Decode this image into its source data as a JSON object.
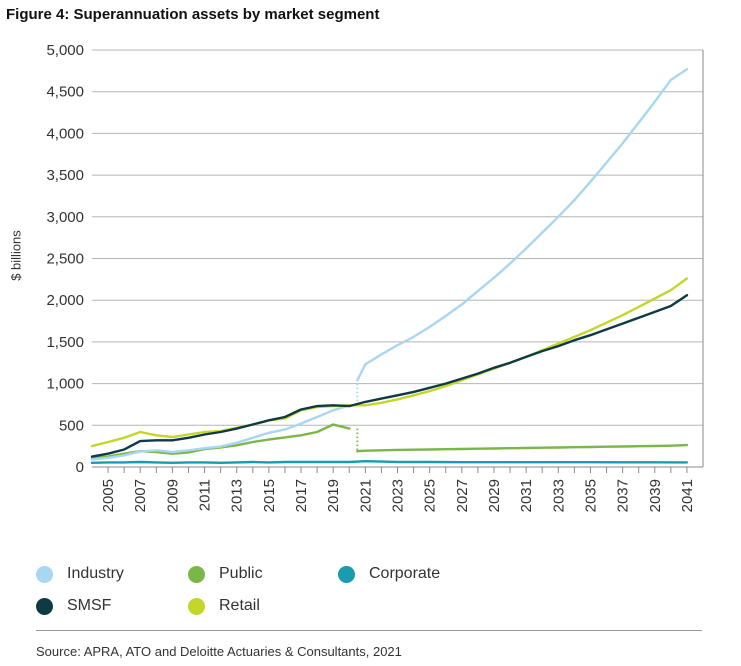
{
  "chart_data": {
    "type": "line",
    "title": "Figure 4: Superannuation assets by market segment",
    "ylabel": "$ billions",
    "xlabel": "",
    "ylim": [
      0,
      5000
    ],
    "xlim": [
      2004,
      2042
    ],
    "yticks": [
      "0",
      "500",
      "1,000",
      "1,500",
      "2,000",
      "2,500",
      "3,000",
      "3,500",
      "4,000",
      "4,500",
      "5,000"
    ],
    "ytick_values": [
      0,
      500,
      1000,
      1500,
      2000,
      2500,
      3000,
      3500,
      4000,
      4500,
      5000
    ],
    "xticks": [
      "2005",
      "2007",
      "2009",
      "2011",
      "2013",
      "2015",
      "2017",
      "2019",
      "2021",
      "2023",
      "2025",
      "2027",
      "2029",
      "2031",
      "2033",
      "2035",
      "2037",
      "2039",
      "2041"
    ],
    "grid": true,
    "legend_position": "bottom",
    "series": [
      {
        "name": "Industry",
        "color": "#a9d6f0",
        "style": "solid",
        "x": [
          2004,
          2005,
          2006,
          2007,
          2008,
          2009,
          2010,
          2011,
          2012,
          2013,
          2014,
          2015,
          2016,
          2017,
          2018,
          2019,
          2020
        ],
        "values": [
          90,
          110,
          140,
          185,
          200,
          180,
          200,
          225,
          245,
          290,
          350,
          410,
          450,
          520,
          600,
          680,
          740
        ]
      },
      {
        "name": "Industry projection",
        "color": "#a9d6f0",
        "style": "solid",
        "x": [
          2020.5,
          2021,
          2022,
          2023,
          2024,
          2025,
          2026,
          2027,
          2028,
          2029,
          2030,
          2031,
          2032,
          2033,
          2034,
          2035,
          2036,
          2037,
          2038,
          2039,
          2040,
          2041
        ],
        "values": [
          1040,
          1230,
          1350,
          1460,
          1560,
          1680,
          1810,
          1950,
          2110,
          2270,
          2440,
          2620,
          2810,
          3000,
          3200,
          3420,
          3650,
          3880,
          4130,
          4380,
          4640,
          4770
        ]
      },
      {
        "name": "Public",
        "color": "#7ab648",
        "style": "solid",
        "x": [
          2004,
          2005,
          2006,
          2007,
          2008,
          2009,
          2010,
          2011,
          2012,
          2013,
          2014,
          2015,
          2016,
          2017,
          2018,
          2019,
          2020
        ],
        "values": [
          105,
          125,
          160,
          190,
          180,
          160,
          175,
          215,
          235,
          260,
          300,
          330,
          355,
          380,
          420,
          510,
          460
        ]
      },
      {
        "name": "Public projection",
        "color": "#7ab648",
        "style": "solid",
        "x": [
          2020.5,
          2021,
          2022,
          2023,
          2024,
          2025,
          2026,
          2027,
          2028,
          2029,
          2030,
          2031,
          2032,
          2033,
          2034,
          2035,
          2036,
          2037,
          2038,
          2039,
          2040,
          2041
        ],
        "values": [
          190,
          195,
          200,
          205,
          208,
          210,
          213,
          216,
          219,
          222,
          225,
          228,
          231,
          234,
          237,
          240,
          243,
          246,
          249,
          252,
          255,
          262
        ]
      },
      {
        "name": "Corporate",
        "color": "#1a9bb0",
        "style": "solid",
        "x": [
          2004,
          2005,
          2006,
          2007,
          2008,
          2009,
          2010,
          2011,
          2012,
          2013,
          2014,
          2015,
          2016,
          2017,
          2018,
          2019,
          2020,
          2021,
          2022,
          2023,
          2025,
          2027,
          2029,
          2031,
          2033,
          2035,
          2037,
          2039,
          2041
        ],
        "values": [
          50,
          55,
          55,
          60,
          55,
          50,
          55,
          55,
          50,
          55,
          60,
          55,
          60,
          60,
          60,
          60,
          60,
          70,
          65,
          60,
          60,
          58,
          58,
          58,
          57,
          57,
          56,
          56,
          55
        ]
      },
      {
        "name": "SMSF",
        "color": "#0e3b43",
        "style": "solid",
        "x": [
          2004,
          2005,
          2006,
          2007,
          2008,
          2009,
          2010,
          2011,
          2012,
          2013,
          2014,
          2015,
          2016,
          2017,
          2018,
          2019,
          2020,
          2021,
          2022,
          2023,
          2024,
          2025,
          2026,
          2027,
          2028,
          2029,
          2030,
          2031,
          2032,
          2033,
          2034,
          2035,
          2036,
          2037,
          2038,
          2039,
          2040,
          2041
        ],
        "values": [
          125,
          160,
          210,
          310,
          320,
          320,
          350,
          390,
          420,
          460,
          510,
          560,
          600,
          690,
          730,
          740,
          730,
          780,
          820,
          860,
          900,
          950,
          1000,
          1060,
          1120,
          1190,
          1250,
          1320,
          1390,
          1450,
          1520,
          1580,
          1650,
          1720,
          1790,
          1860,
          1930,
          2060
        ]
      },
      {
        "name": "Retail",
        "color": "#c5d62a",
        "style": "solid",
        "x": [
          2004,
          2005,
          2006,
          2007,
          2008,
          2009,
          2010,
          2011,
          2012,
          2013,
          2014,
          2015,
          2016,
          2017,
          2018,
          2019,
          2020,
          2021,
          2022,
          2023,
          2024,
          2025,
          2026,
          2027,
          2028,
          2029,
          2030,
          2031,
          2032,
          2033,
          2034,
          2035,
          2036,
          2037,
          2038,
          2039,
          2040,
          2041
        ],
        "values": [
          250,
          300,
          350,
          420,
          380,
          360,
          390,
          420,
          430,
          470,
          510,
          560,
          580,
          680,
          720,
          730,
          740,
          740,
          770,
          810,
          860,
          910,
          970,
          1040,
          1110,
          1180,
          1250,
          1320,
          1400,
          1480,
          1560,
          1640,
          1730,
          1820,
          1920,
          2020,
          2120,
          2260
        ]
      }
    ],
    "connectors": [
      {
        "series": "Industry",
        "color": "#a9d6f0",
        "x": 2020.5,
        "from": 740,
        "to": 1040
      },
      {
        "series": "Public",
        "color": "#7ab648",
        "x": 2020.5,
        "from": 460,
        "to": 190
      }
    ]
  },
  "legend": {
    "items": [
      {
        "label": "Industry",
        "color": "#a9d6f0"
      },
      {
        "label": "Public",
        "color": "#7ab648"
      },
      {
        "label": "Corporate",
        "color": "#1a9bb0"
      },
      {
        "label": "SMSF",
        "color": "#0e3b43"
      },
      {
        "label": "Retail",
        "color": "#c5d62a"
      }
    ]
  },
  "source": "Source: APRA, ATO and Deloitte Actuaries & Consultants, 2021"
}
